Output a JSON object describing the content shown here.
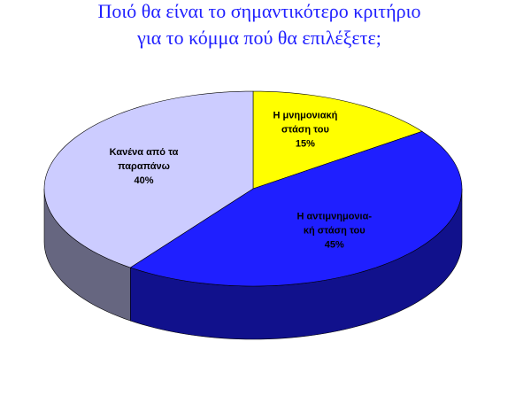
{
  "chart_data": {
    "type": "pie",
    "title": [
      "Ποιό θα είναι το σημαντικότερο κριτήριο",
      "για το κόμμα πού θα επιλέξετε;"
    ],
    "categories": [
      [
        "Η μνημονιακή",
        "στάση του"
      ],
      [
        "Η αντιμνημονια-",
        "κή στάση του"
      ],
      [
        "Κανένα από τα",
        "παραπάνω"
      ]
    ],
    "values": [
      15,
      45,
      40
    ],
    "value_labels": [
      "15%",
      "45%",
      "40%"
    ],
    "colors": [
      "#ffff00",
      "#1f1fff",
      "#ccccff"
    ]
  }
}
